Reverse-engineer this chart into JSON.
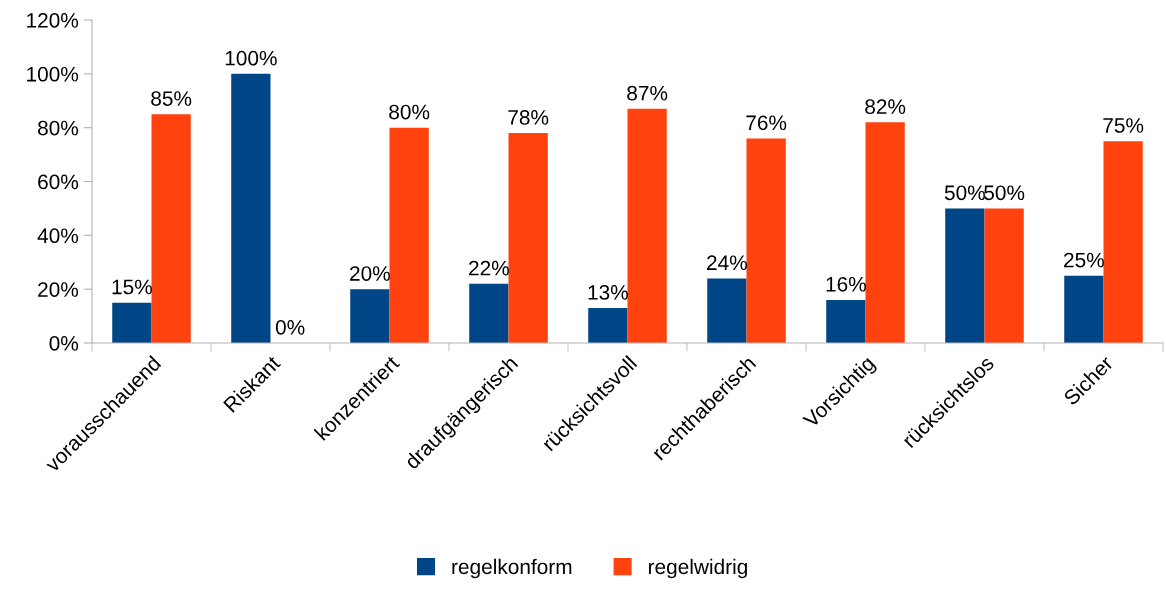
{
  "chart_data": {
    "type": "bar",
    "categories": [
      "vorausschauend",
      "Riskant",
      "konzentriert",
      "draufgängerisch",
      "rücksichtsvoll",
      "rechthaberisch",
      "Vorsichtig",
      "rücksichtslos",
      "Sicher"
    ],
    "series": [
      {
        "name": "regelkonform",
        "color": "#004586",
        "values": [
          15,
          100,
          20,
          22,
          13,
          24,
          16,
          50,
          25
        ],
        "value_labels": [
          "15%",
          "100%",
          "20%",
          "22%",
          "13%",
          "24%",
          "16%",
          "50%",
          "25%"
        ]
      },
      {
        "name": "regelwidrig",
        "color": "#ff420e",
        "values": [
          85,
          0,
          80,
          78,
          87,
          76,
          82,
          50,
          75
        ],
        "value_labels": [
          "85%",
          "0%",
          "80%",
          "78%",
          "87%",
          "76%",
          "82%",
          "50%",
          "75%"
        ]
      }
    ],
    "ylim": [
      0,
      120
    ],
    "yticks": [
      {
        "value": 0,
        "label": "0%"
      },
      {
        "value": 20,
        "label": "20%"
      },
      {
        "value": 40,
        "label": "40%"
      },
      {
        "value": 60,
        "label": "60%"
      },
      {
        "value": 80,
        "label": "80%"
      },
      {
        "value": 100,
        "label": "100%"
      },
      {
        "value": 120,
        "label": "120%"
      }
    ],
    "grid": false,
    "legend": "bottom"
  }
}
